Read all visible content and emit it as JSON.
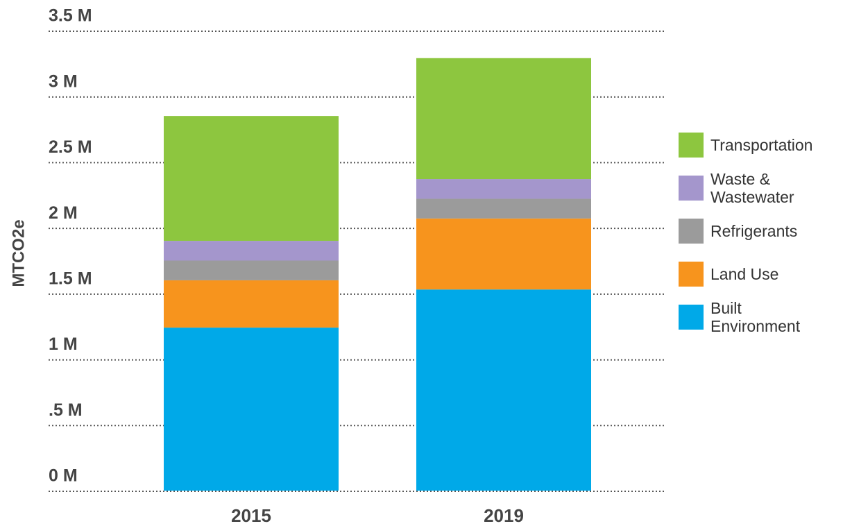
{
  "chart_data": {
    "type": "stacked_bar",
    "y_label": "MTCO2e",
    "categories": [
      "2015",
      "2019"
    ],
    "series": [
      {
        "name": "Built Environment",
        "color": "#00a9e8",
        "values": [
          1.24,
          1.53
        ]
      },
      {
        "name": "Land Use",
        "color": "#f7941d",
        "values": [
          0.36,
          0.54
        ]
      },
      {
        "name": "Refrigerants",
        "color": "#9b9b9b",
        "values": [
          0.15,
          0.15
        ]
      },
      {
        "name": "Waste & Wastewater",
        "color": "#a496cc",
        "values": [
          0.15,
          0.15
        ]
      },
      {
        "name": "Transportation",
        "color": "#8dc63f",
        "values": [
          0.95,
          0.92
        ]
      }
    ],
    "ylim": [
      0,
      3.5
    ],
    "yticks": [
      {
        "value": 0,
        "label": "0 M"
      },
      {
        "value": 0.5,
        "label": ".5 M"
      },
      {
        "value": 1,
        "label": "1 M"
      },
      {
        "value": 1.5,
        "label": "1.5 M"
      },
      {
        "value": 2,
        "label": "2 M"
      },
      {
        "value": 2.5,
        "label": "2.5 M"
      },
      {
        "value": 3,
        "label": "3 M"
      },
      {
        "value": 3.5,
        "label": "3.5 M"
      }
    ],
    "grid": true,
    "legend": "right"
  }
}
